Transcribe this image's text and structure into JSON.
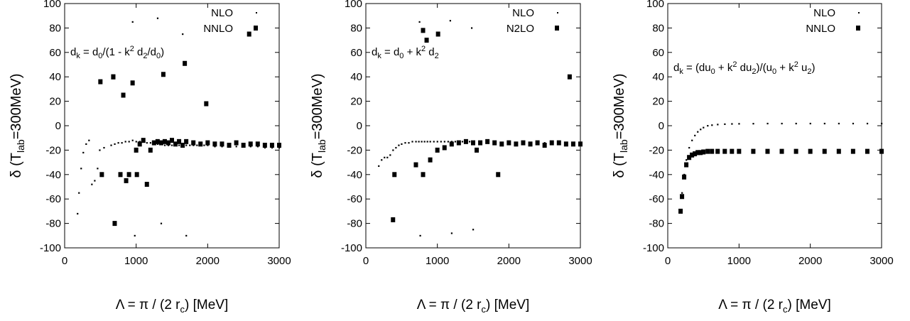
{
  "chart_data": [
    {
      "type": "scatter",
      "xlabel": "Λ = π / (2 r_c) [MeV]",
      "ylabel": "δ (T_lab=300MeV)",
      "xticks": [
        "0",
        "1000",
        "2000",
        "3000"
      ],
      "yticks": [
        "-100",
        "-80",
        "-60",
        "-40",
        "-20",
        "0",
        "20",
        "40",
        "60",
        "80",
        "100"
      ],
      "xlim": [
        0,
        3000
      ],
      "ylim": [
        -100,
        100
      ],
      "legend_position": "top-right",
      "annotation": "d_k = d_0/(1 - k^2 d_2/d_0)",
      "series": [
        {
          "name": "NLO",
          "marker": "dot",
          "x": [
            180,
            200,
            230,
            260,
            300,
            340,
            380,
            420,
            460,
            490,
            550,
            650,
            700,
            750,
            800,
            850,
            900,
            950,
            1000,
            1050,
            1100,
            1150,
            1200,
            1250,
            1300,
            1350,
            1400,
            1450,
            1500,
            1550,
            1600,
            1650,
            1700,
            1750,
            1800,
            1850,
            1900,
            1950,
            2000,
            2100,
            2200,
            2300,
            2400,
            2500,
            2600,
            2700,
            2800,
            2900,
            3000,
            950,
            980,
            1300,
            1350,
            1650,
            1700
          ],
          "y": [
            -72,
            -55,
            -35,
            -22,
            -15,
            -12,
            -48,
            -45,
            -35,
            -20,
            -18,
            -16,
            -15,
            -14,
            -14,
            -13,
            -13,
            -12,
            -13,
            -13,
            -13,
            -14,
            -14,
            -14,
            -15,
            -15,
            -16,
            -16,
            -16,
            -16,
            -16,
            -16,
            -16,
            -16,
            -16,
            -16,
            -16,
            -16,
            -16,
            -17,
            -17,
            -17,
            -17,
            -17,
            -17,
            -17,
            -18,
            -18,
            -18,
            85,
            -90,
            88,
            -80,
            75,
            -90
          ]
        },
        {
          "name": "NNLO",
          "marker": "square",
          "x": [
            500,
            520,
            680,
            700,
            780,
            820,
            860,
            900,
            950,
            1000,
            1050,
            1100,
            1150,
            1200,
            1250,
            1300,
            1350,
            1400,
            1450,
            1500,
            1550,
            1600,
            1650,
            1700,
            1800,
            1900,
            2000,
            2100,
            2200,
            2300,
            2400,
            2500,
            2600,
            2700,
            2800,
            2900,
            3000,
            680,
            1010,
            1380,
            1680,
            1980,
            2580
          ],
          "y": [
            36,
            -40,
            40,
            -80,
            -40,
            25,
            -45,
            -40,
            35,
            -20,
            -15,
            -12,
            -48,
            -20,
            -14,
            -13,
            -14,
            -13,
            -14,
            -12,
            -15,
            -13,
            -16,
            -13,
            -14,
            -15,
            -14,
            -15,
            -15,
            -16,
            -14,
            -16,
            -15,
            -15,
            -16,
            -16,
            -16,
            40,
            -40,
            42,
            51,
            18,
            75
          ]
        }
      ]
    },
    {
      "type": "scatter",
      "xlabel": "Λ = π / (2 r_c) [MeV]",
      "ylabel": "δ (T_lab=300MeV)",
      "xticks": [
        "0",
        "1000",
        "2000",
        "3000"
      ],
      "yticks": [
        "-100",
        "-80",
        "-60",
        "-40",
        "-20",
        "0",
        "20",
        "40",
        "60",
        "80",
        "100"
      ],
      "xlim": [
        0,
        3000
      ],
      "ylim": [
        -100,
        100
      ],
      "legend_position": "top-right",
      "annotation": "d_k = d_0 + k^2 d_2",
      "series": [
        {
          "name": "NLO",
          "marker": "dot",
          "x": [
            180,
            220,
            260,
            300,
            340,
            380,
            420,
            460,
            500,
            550,
            600,
            650,
            700,
            740,
            780,
            820,
            860,
            900,
            950,
            1000,
            1050,
            1100,
            1150,
            1200,
            1250,
            1300,
            1350,
            1400,
            1450,
            1500,
            1600,
            1700,
            1800,
            1900,
            2000,
            2100,
            2200,
            2300,
            2400,
            2500,
            2600,
            2700,
            2800,
            2900,
            3000,
            750,
            760,
            1180,
            1200,
            1480,
            1500
          ],
          "y": [
            -33,
            -28,
            -26,
            -26,
            -24,
            -20,
            -18,
            -16,
            -15,
            -14,
            -14,
            -13,
            -13,
            -13,
            -13,
            -13,
            -13,
            -13,
            -13,
            -13,
            -13,
            -13,
            -13,
            -13,
            -13,
            -13,
            -13,
            -13,
            -13,
            -13,
            -13,
            -13,
            -14,
            -14,
            -14,
            -14,
            -14,
            -14,
            -14,
            -14,
            -14,
            -14,
            -14,
            -14,
            -14,
            85,
            -90,
            86,
            -88,
            80,
            -85
          ]
        },
        {
          "name": "N2LO",
          "marker": "square",
          "x": [
            380,
            400,
            700,
            800,
            850,
            900,
            1000,
            1100,
            1200,
            1300,
            1400,
            1500,
            1600,
            1700,
            1800,
            1900,
            2000,
            2100,
            2200,
            2300,
            2400,
            2500,
            2600,
            2700,
            2800,
            2900,
            3000,
            800,
            1010,
            1550,
            1850,
            2850
          ],
          "y": [
            -77,
            -40,
            -32,
            78,
            70,
            -28,
            -20,
            -18,
            -15,
            -14,
            -13,
            -14,
            -14,
            -13,
            -14,
            -15,
            -14,
            -15,
            -14,
            -15,
            -14,
            -16,
            -14,
            -14,
            -15,
            -15,
            -15,
            -40,
            75,
            -20,
            -40,
            40
          ]
        }
      ]
    },
    {
      "type": "scatter",
      "xlabel": "Λ = π / (2 r_c) [MeV]",
      "ylabel": "δ (T_lab=300MeV)",
      "xticks": [
        "0",
        "1000",
        "2000",
        "3000"
      ],
      "yticks": [
        "-100",
        "-80",
        "-60",
        "-40",
        "-20",
        "0",
        "20",
        "40",
        "60",
        "80",
        "100"
      ],
      "xlim": [
        0,
        3000
      ],
      "ylim": [
        -100,
        100
      ],
      "legend_position": "top-right",
      "annotation": "d_k = (du_0 + k^2 du_2)/(u_0 + k^2 u_2)",
      "series": [
        {
          "name": "NLO",
          "marker": "dot",
          "x": [
            180,
            200,
            230,
            260,
            300,
            340,
            380,
            420,
            460,
            500,
            560,
            620,
            700,
            800,
            900,
            1000,
            1200,
            1400,
            1600,
            1800,
            2000,
            2200,
            2400,
            2600,
            2800,
            3000
          ],
          "y": [
            -70,
            -55,
            -40,
            -28,
            -18,
            -12,
            -8,
            -5,
            -3,
            -1.5,
            0,
            0.5,
            1,
            1.3,
            1.5,
            1.6,
            1.7,
            1.8,
            1.8,
            1.8,
            1.8,
            1.8,
            1.8,
            1.8,
            1.8,
            1.8
          ]
        },
        {
          "name": "NNLO",
          "marker": "square",
          "x": [
            180,
            200,
            230,
            260,
            300,
            340,
            380,
            420,
            460,
            500,
            560,
            620,
            700,
            800,
            900,
            1000,
            1200,
            1400,
            1600,
            1800,
            2000,
            2200,
            2400,
            2600,
            2800,
            3000
          ],
          "y": [
            -70,
            -58,
            -42,
            -32,
            -26,
            -24,
            -23,
            -22,
            -22,
            -21.5,
            -21,
            -21,
            -21,
            -21,
            -21,
            -21,
            -21,
            -21,
            -21,
            -21,
            -21,
            -21,
            -21,
            -21,
            -21,
            -21
          ]
        }
      ]
    }
  ]
}
